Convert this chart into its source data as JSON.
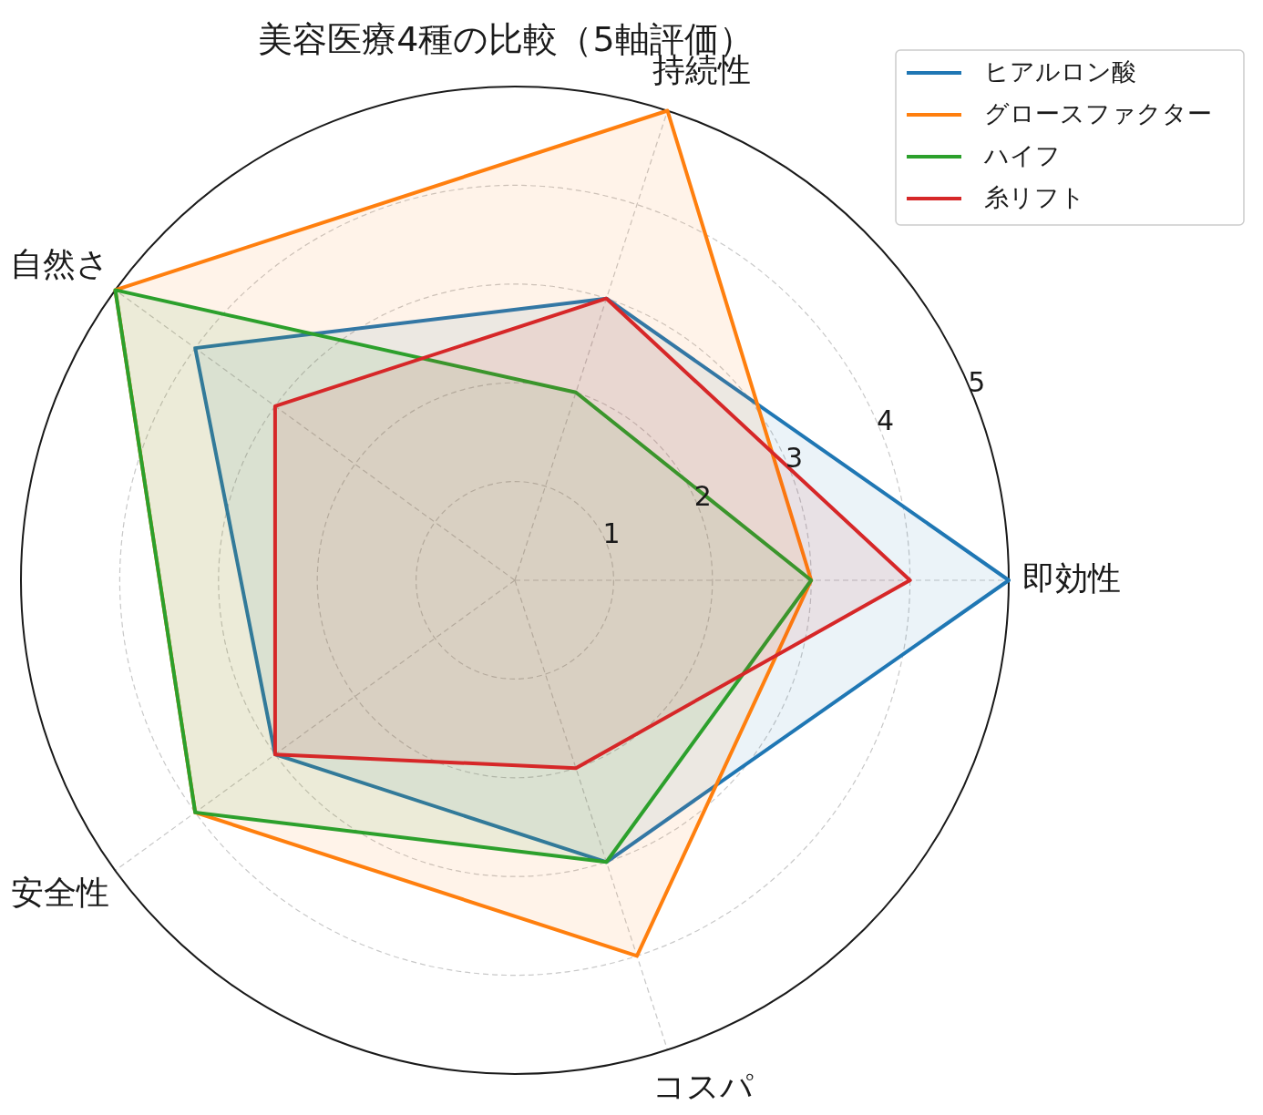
{
  "chart_data": {
    "type": "radar",
    "title": "美容医療4種の比較（5軸評価）",
    "categories": [
      "持続性",
      "即効性",
      "コスパ",
      "安全性",
      "自然さ"
    ],
    "series": [
      {
        "name": "ヒアルロン酸",
        "color": "#1f77b4",
        "values": [
          3,
          5,
          3,
          3,
          4
        ]
      },
      {
        "name": "グロースファクター",
        "color": "#ff7f0e",
        "values": [
          5,
          3,
          4,
          4,
          5
        ]
      },
      {
        "name": "ハイフ",
        "color": "#2ca02c",
        "values": [
          2,
          3,
          3,
          4,
          5
        ]
      },
      {
        "name": "糸リフト",
        "color": "#d62728",
        "values": [
          3,
          4,
          2,
          3,
          3
        ]
      }
    ],
    "ylim": [
      0,
      5
    ],
    "yticks": [
      1,
      2,
      3,
      4,
      5
    ],
    "grid": true,
    "legend": "top right"
  }
}
